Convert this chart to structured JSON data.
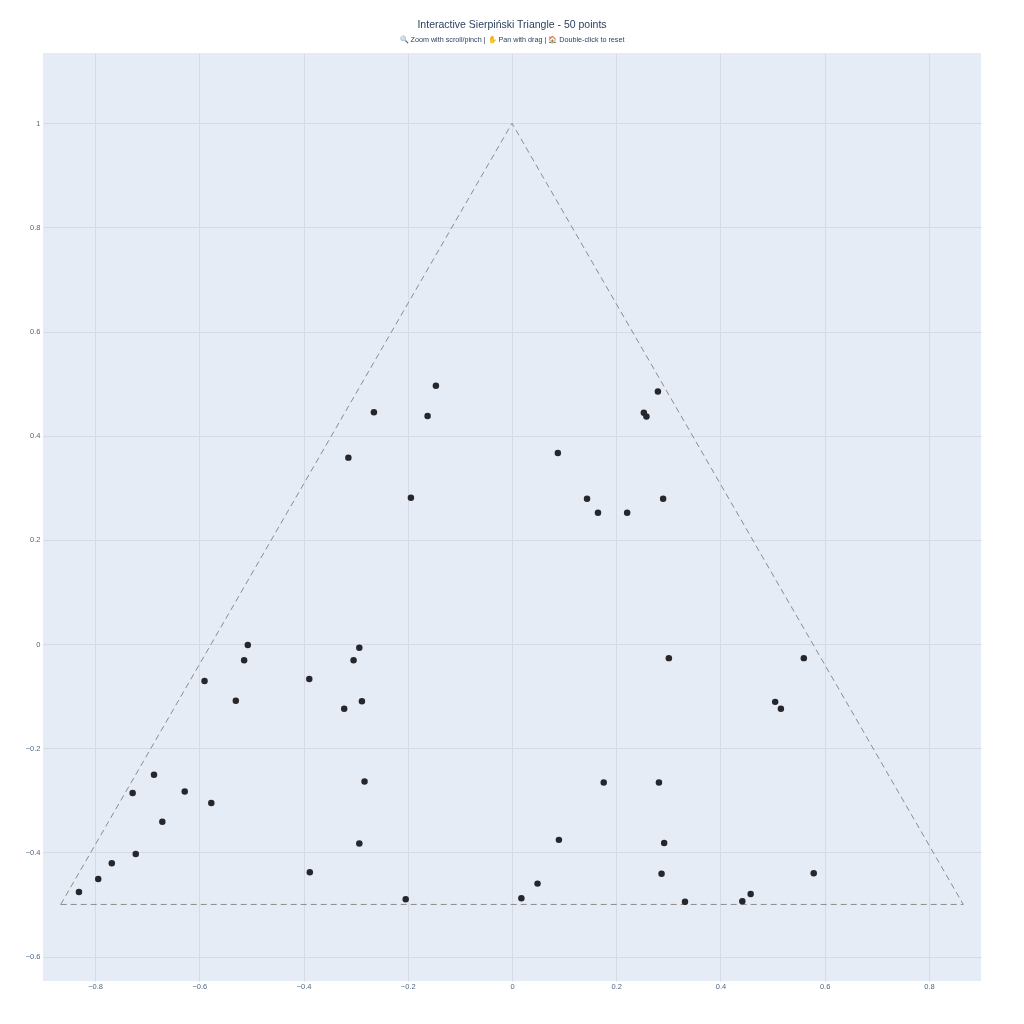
{
  "chart_data": {
    "type": "scatter",
    "title": "Interactive Sierpiński Triangle - 50 points",
    "subtitle": "🔍 Zoom with scroll/pinch | ✋ Pan with drag | 🏠 Double-click to reset",
    "series": [
      {
        "type": "line",
        "color": "#8c8c8c",
        "line_style": "dashed",
        "x": [
          -0.866,
          0,
          0.866
        ],
        "values": [
          -0.5,
          1,
          -0.5
        ]
      },
      {
        "type": "line",
        "color": "#8c8c8c",
        "line_style": "dashed",
        "x": [
          -0.866,
          0.866
        ],
        "values": [
          -0.5,
          -0.5
        ]
      },
      {
        "color": "#26262b",
        "marker": "circle",
        "x": [
          -0.146,
          -0.265,
          -0.162,
          -0.314,
          -0.194,
          -0.507,
          -0.293,
          -0.514,
          -0.304,
          -0.59,
          -0.389,
          -0.53,
          -0.288,
          -0.322,
          -0.687,
          -0.728,
          -0.628,
          -0.577,
          -0.671,
          -0.722,
          -0.768,
          -0.794,
          -0.831,
          -0.283,
          -0.293,
          -0.388,
          -0.204,
          0.28,
          0.253,
          0.258,
          0.088,
          0.144,
          0.29,
          0.165,
          0.221,
          0.301,
          0.56,
          0.505,
          0.516,
          0.176,
          0.282,
          0.09,
          0.292,
          0.287,
          0.579,
          0.049,
          0.018,
          0.332,
          0.442,
          0.458
        ],
        "values": [
          0.496,
          0.445,
          0.438,
          0.358,
          0.281,
          -0.002,
          -0.007,
          -0.031,
          -0.031,
          -0.071,
          -0.067,
          -0.109,
          -0.11,
          -0.124,
          -0.251,
          -0.286,
          -0.283,
          -0.305,
          -0.341,
          -0.403,
          -0.421,
          -0.451,
          -0.476,
          -0.264,
          -0.383,
          -0.438,
          -0.49,
          0.485,
          0.444,
          0.437,
          0.367,
          0.279,
          0.279,
          0.252,
          0.252,
          -0.027,
          -0.027,
          -0.111,
          -0.124,
          -0.266,
          -0.266,
          -0.376,
          -0.382,
          -0.441,
          -0.44,
          -0.46,
          -0.488,
          -0.495,
          -0.494,
          -0.48
        ]
      }
    ],
    "xlim": [
      -0.9,
      0.9
    ],
    "ylim": [
      -0.647,
      1.135
    ],
    "xticks": [
      {
        "value": -0.8,
        "label": "−0.8"
      },
      {
        "value": -0.6,
        "label": "−0.6"
      },
      {
        "value": -0.4,
        "label": "−0.4"
      },
      {
        "value": -0.2,
        "label": "−0.2"
      },
      0,
      0.2,
      0.4,
      0.6,
      0.8
    ],
    "yticks": [
      {
        "value": -0.6,
        "label": "−0.6"
      },
      {
        "value": -0.4,
        "label": "−0.4"
      },
      {
        "value": -0.2,
        "label": "−0.2"
      },
      0,
      0.2,
      0.4,
      0.6,
      0.8,
      1
    ],
    "grid": true
  }
}
